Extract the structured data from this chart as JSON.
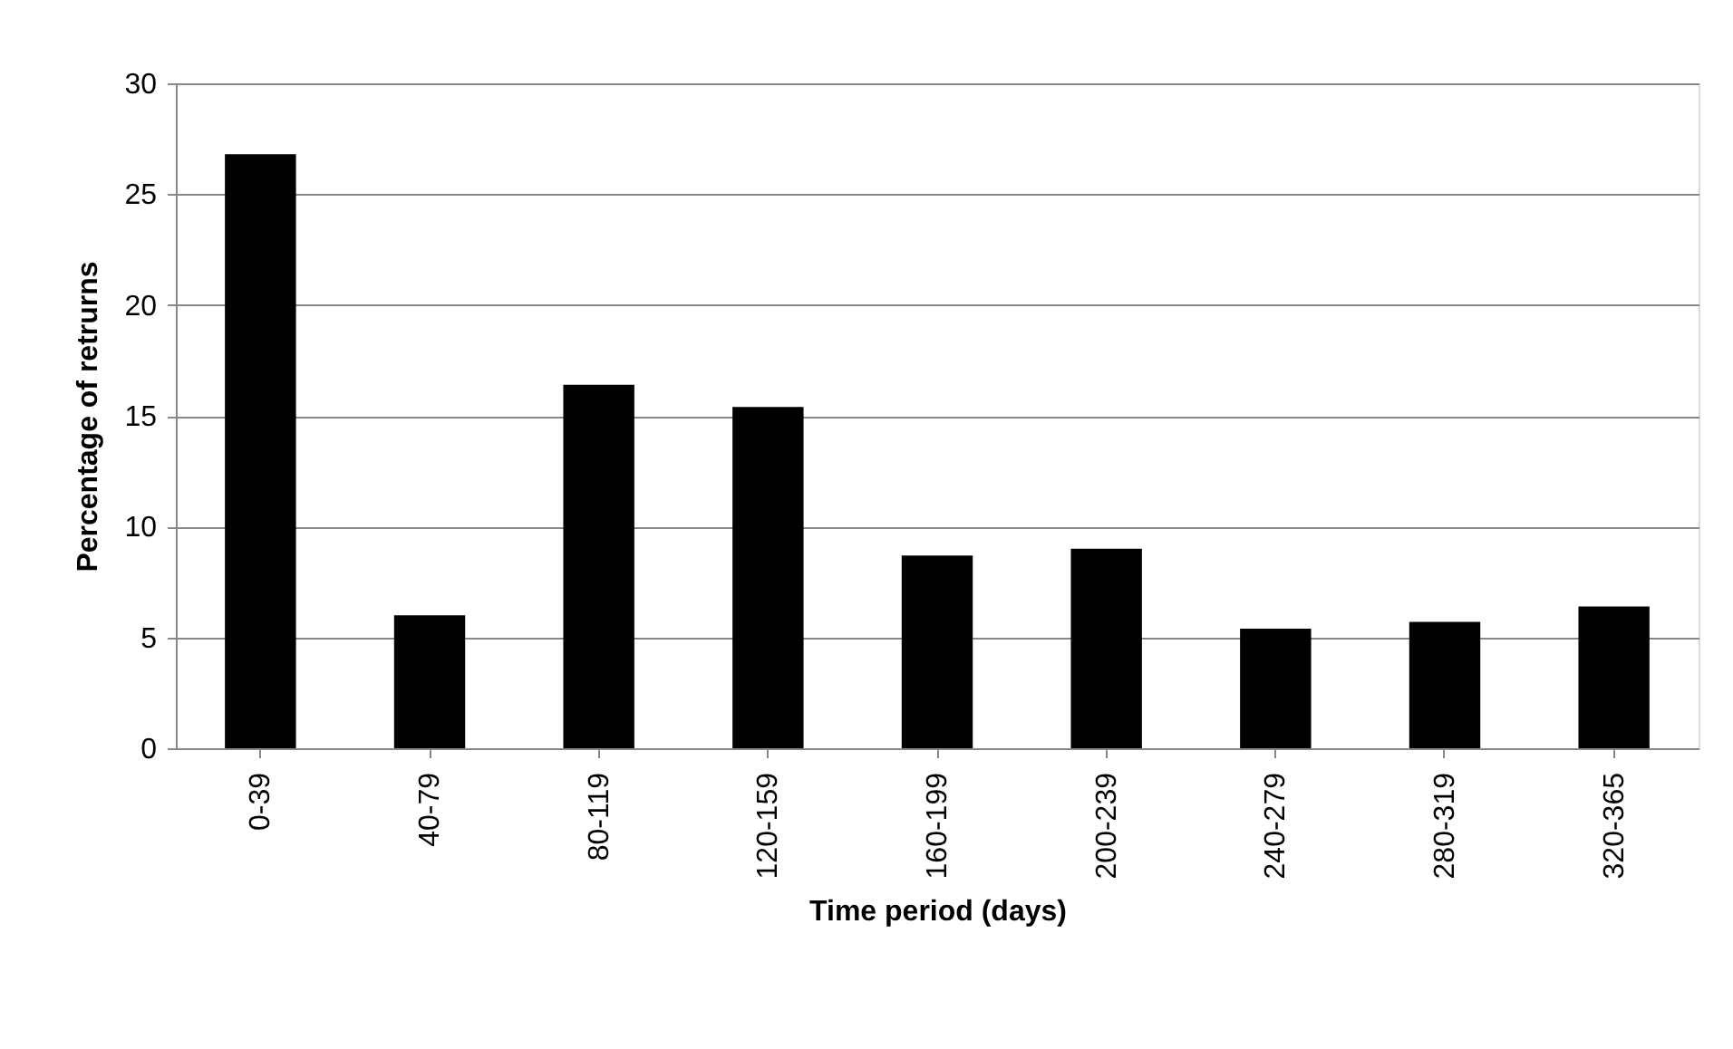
{
  "chart_data": {
    "type": "bar",
    "xlabel": "Time period (days)",
    "ylabel": "Percentage of retrurns",
    "categories": [
      "0-39",
      "40-79",
      "80-119",
      "120-159",
      "160-199",
      "200-239",
      "240-279",
      "280-319",
      "320-365"
    ],
    "values": [
      26.8,
      6.0,
      16.4,
      15.4,
      8.7,
      9.0,
      5.4,
      5.7,
      6.4
    ],
    "color": "#000000",
    "ylim": [
      0,
      30
    ],
    "yticks": [
      0,
      5,
      10,
      15,
      20,
      25,
      30
    ],
    "grid": "y"
  }
}
